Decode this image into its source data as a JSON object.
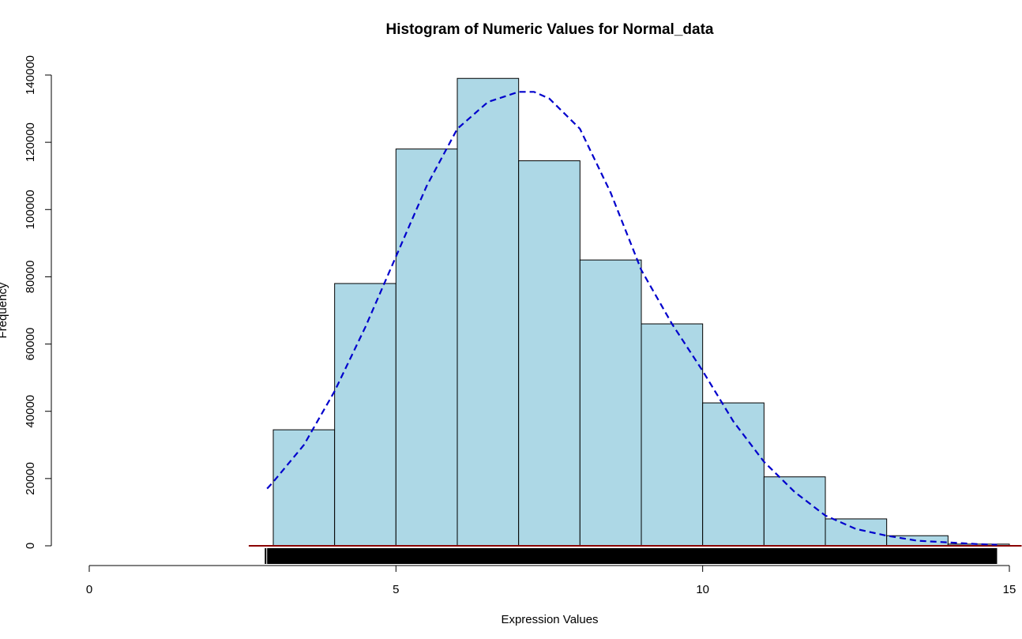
{
  "chart_data": {
    "type": "bar",
    "title": "Histogram of Numeric Values for Normal_data",
    "xlabel": "Expression Values",
    "ylabel": "Frequency",
    "xlim": [
      0,
      15
    ],
    "ylim": [
      0,
      140000
    ],
    "x_ticks": [
      0,
      5,
      10,
      15
    ],
    "y_ticks": [
      0,
      20000,
      40000,
      60000,
      80000,
      100000,
      120000,
      140000
    ],
    "bins": [
      {
        "start": 3,
        "end": 4,
        "value": 34500
      },
      {
        "start": 4,
        "end": 5,
        "value": 78000
      },
      {
        "start": 5,
        "end": 6,
        "value": 118000
      },
      {
        "start": 6,
        "end": 7,
        "value": 139000
      },
      {
        "start": 7,
        "end": 8,
        "value": 114500
      },
      {
        "start": 8,
        "end": 9,
        "value": 85000
      },
      {
        "start": 9,
        "end": 10,
        "value": 66000
      },
      {
        "start": 10,
        "end": 11,
        "value": 42500
      },
      {
        "start": 11,
        "end": 12,
        "value": 20500
      },
      {
        "start": 12,
        "end": 13,
        "value": 8000
      },
      {
        "start": 13,
        "end": 14,
        "value": 3000
      },
      {
        "start": 14,
        "end": 15,
        "value": 500
      }
    ],
    "density_curve": {
      "style": "dashed",
      "color": "#0000cc",
      "x": [
        2.9,
        3.0,
        3.5,
        4.0,
        4.5,
        5.0,
        5.5,
        6.0,
        6.5,
        7.0,
        7.25,
        7.5,
        8.0,
        8.5,
        9.0,
        9.5,
        10.0,
        10.5,
        11.0,
        11.5,
        12.0,
        12.5,
        13.0,
        13.5,
        14.0,
        14.5,
        14.8
      ],
      "y": [
        17000,
        19000,
        30000,
        46000,
        65000,
        86000,
        107000,
        124000,
        132000,
        135000,
        135000,
        133000,
        124000,
        105000,
        82000,
        66000,
        52000,
        37000,
        25000,
        16000,
        9000,
        5000,
        3000,
        1500,
        1000,
        500,
        300
      ]
    },
    "rug": {
      "from": 2.9,
      "to": 14.8,
      "color": "#000000"
    },
    "baseline_line": {
      "from": 2.6,
      "to": 15.2,
      "color": "#8b0000"
    },
    "bar_fill": "#add8e6",
    "grid": false,
    "legend": "none"
  }
}
